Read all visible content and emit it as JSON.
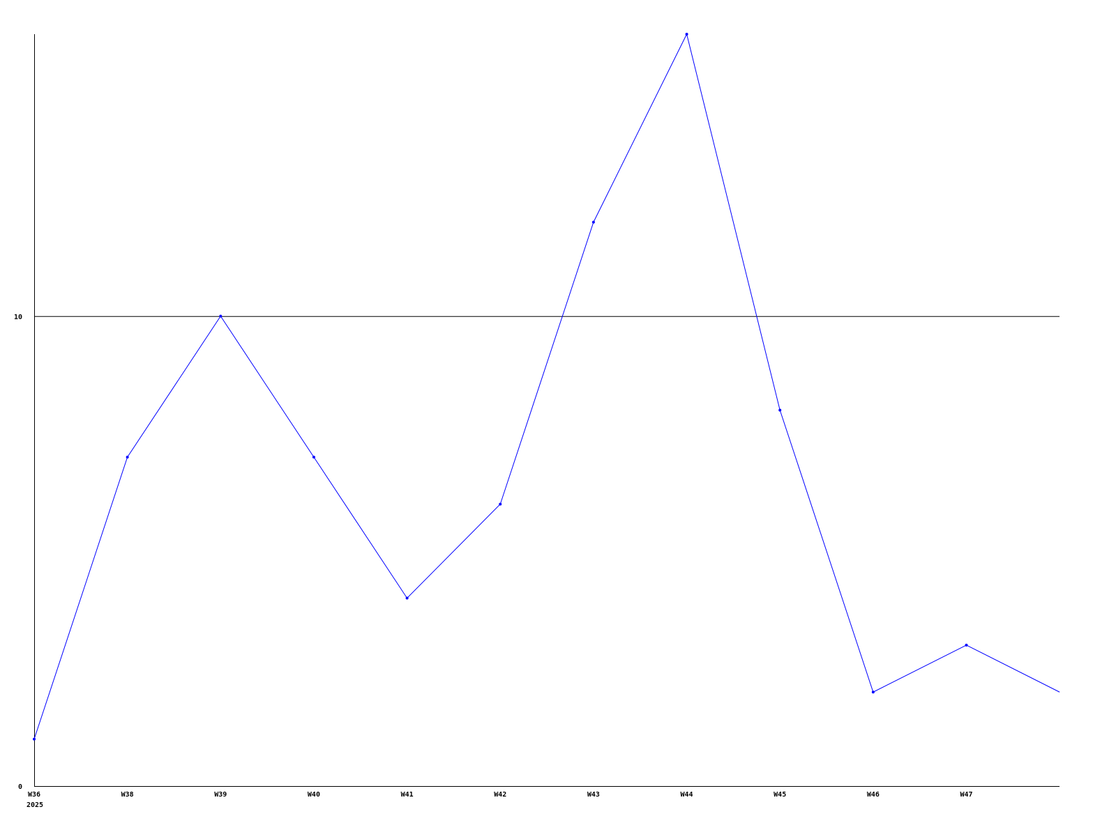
{
  "chart_data": {
    "type": "line",
    "title": "",
    "xlabel": "",
    "ylabel": "",
    "categories": [
      "W36",
      "W38",
      "W39",
      "W40",
      "W41",
      "W42",
      "W43",
      "W44",
      "W45",
      "W46",
      "W47",
      ""
    ],
    "x_sublabel": "2025",
    "series": [
      {
        "values": [
          1,
          7,
          10,
          7,
          4,
          6,
          12,
          16,
          8,
          2,
          3,
          2
        ],
        "color": "#0000ff"
      }
    ],
    "yticks": [
      0,
      10
    ],
    "ytick_labels": [
      "0",
      "10"
    ],
    "ylim": [
      0,
      16
    ],
    "grid": "horizontal line at 10",
    "legend": "none",
    "axis_color": "#000000"
  }
}
